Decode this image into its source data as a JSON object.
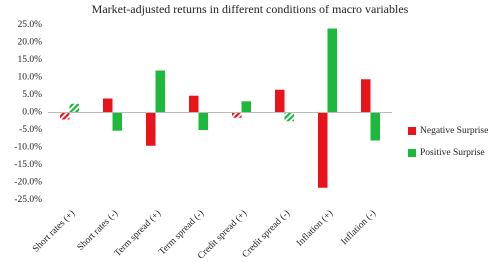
{
  "chart_data": {
    "type": "bar",
    "title": "Market-adjusted returns in different conditions of macro variables",
    "categories": [
      "Short rates (+)",
      "Short rates (-)",
      "Term spread (+)",
      "Term spread (-)",
      "Credit spread (+)",
      "Credit spread (-)",
      "Inflation (+)",
      "Inflation (-)"
    ],
    "series": [
      {
        "name": "Negative Surprise",
        "color": "#e8131b",
        "values": [
          -2.0,
          4.0,
          -9.5,
          4.8,
          -1.5,
          6.5,
          -21.5,
          9.5
        ],
        "hatched": [
          true,
          false,
          false,
          false,
          true,
          false,
          false,
          false
        ]
      },
      {
        "name": "Positive Surprise",
        "color": "#1db83c",
        "values": [
          2.5,
          -5.2,
          12.0,
          -5.0,
          3.2,
          -2.5,
          24.0,
          -8.0
        ],
        "hatched": [
          true,
          false,
          false,
          false,
          false,
          true,
          false,
          false
        ]
      }
    ],
    "ylim": [
      -25,
      25
    ],
    "yticks": [
      {
        "value": 25,
        "label": "25.0%"
      },
      {
        "value": 20,
        "label": "20.0%"
      },
      {
        "value": 15,
        "label": "15.0%"
      },
      {
        "value": 10,
        "label": "10.0%"
      },
      {
        "value": 5,
        "label": "5.0%"
      },
      {
        "value": 0,
        "label": "0.0%"
      },
      {
        "value": -5,
        "label": "-5.0%"
      },
      {
        "value": -10,
        "label": "-10.0%"
      },
      {
        "value": -15,
        "label": "-15.0%"
      },
      {
        "value": -20,
        "label": "-20.0%"
      },
      {
        "value": -25,
        "label": "-25.0%"
      }
    ],
    "grid": false,
    "legend": "right"
  }
}
